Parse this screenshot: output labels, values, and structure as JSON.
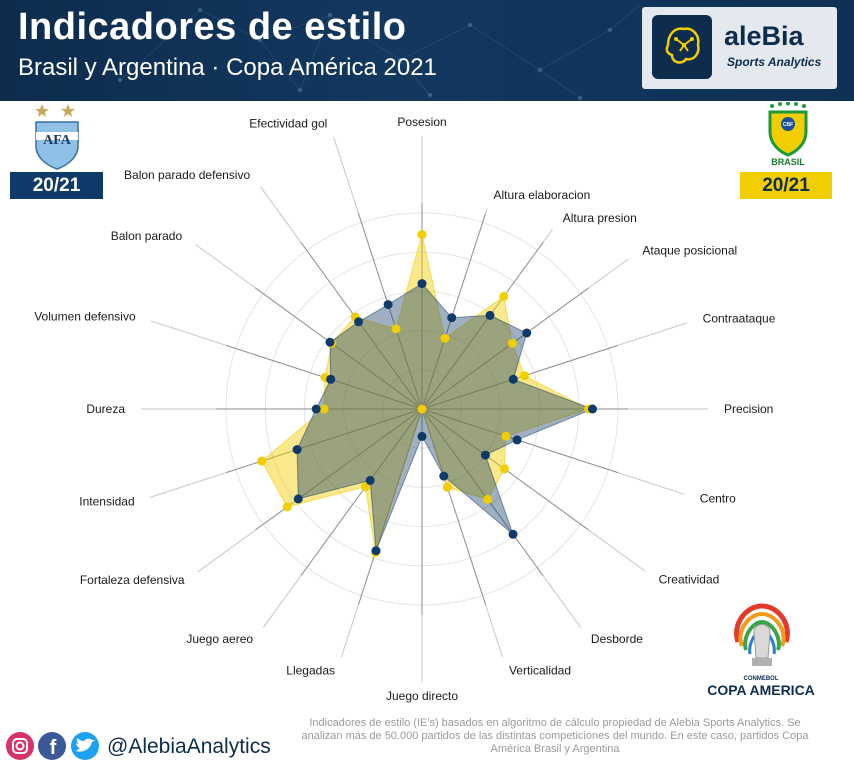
{
  "header": {
    "title": "Indicadores de estilo",
    "subtitle": "Brasil y Argentina · Copa América 2021"
  },
  "brand": {
    "name": "aleBia",
    "tagline": "Sports Analytics"
  },
  "teams": {
    "argentina": {
      "season": "20/21",
      "color": "#0f3a6a"
    },
    "brasil": {
      "season": "20/21",
      "crest_text": "BRASIL",
      "color": "#f2cd00"
    }
  },
  "competition_logo": {
    "small": "CONMEBOL",
    "name": "COPA AMERICA"
  },
  "footer": {
    "note": "Indicadores de estilo (IE's) basados en algoritmo de cálculo propiedad de Alebia Sports Analytics. Se analizan más de 50.000 partidos de las distintas competiciones del mundo. En este caso, partidos Copa América Brasil y Argentina",
    "handle": "@AlebiaAnalytics",
    "icons": [
      "instagram-icon",
      "facebook-icon",
      "twitter-icon"
    ]
  },
  "chart_data": {
    "type": "radar",
    "title": "Indicadores de estilo",
    "categories": [
      "Posesion",
      "Altura elaboracion",
      "Altura presion",
      "Ataque posicional",
      "Contraataque",
      "Precision",
      "Centro",
      "Creatividad",
      "Desborde",
      "Verticalidad",
      "Juego directo",
      "Llegadas",
      "Juego aereo",
      "Fortaleza defensiva",
      "Intensidad",
      "Dureza",
      "Volumen defensivo",
      "Balon parado",
      "Balon parado defensivo",
      "Efectividad gol"
    ],
    "rlim": [
      0,
      1
    ],
    "grid": true,
    "series": [
      {
        "color": "#f2cd00",
        "values": [
          0.89,
          0.38,
          0.71,
          0.57,
          0.55,
          0.85,
          0.45,
          0.52,
          0.57,
          0.42,
          0.0,
          0.77,
          0.49,
          0.85,
          0.86,
          0.5,
          0.52,
          0.57,
          0.58,
          0.43
        ]
      },
      {
        "color": "#0f3a6a",
        "values": [
          0.64,
          0.49,
          0.59,
          0.66,
          0.49,
          0.87,
          0.51,
          0.4,
          0.79,
          0.36,
          0.14,
          0.76,
          0.45,
          0.78,
          0.67,
          0.54,
          0.49,
          0.58,
          0.55,
          0.56
        ]
      }
    ]
  }
}
